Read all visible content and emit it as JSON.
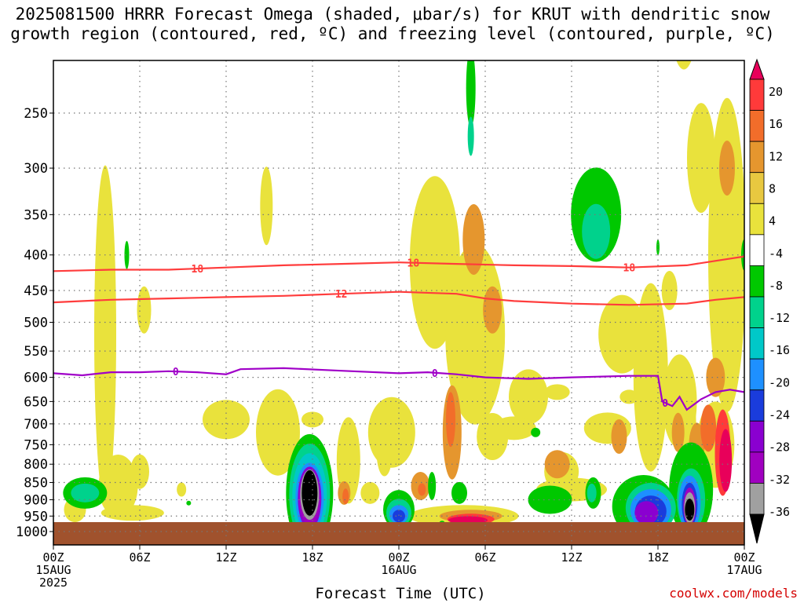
{
  "title_line1": "2025081500 HRRR Forecast Omega (shaded, μbar/s) for KRUT with dendritic snow",
  "title_line2": "growth region (contoured, red, ºC) and freezing level (contoured, purple, ºC)",
  "xaxis_title": "Forecast Time (UTC)",
  "credit": "coolwx.com/models",
  "chart_data": {
    "type": "heatmap",
    "title": "2025081500 HRRR Forecast Omega (shaded, μbar/s) for KRUT with dendritic snow growth region (contoured, red, ºC) and freezing level (contoured, purple, ºC)",
    "xlabel": "Forecast Time (UTC)",
    "ylabel": "",
    "x_ticks": [
      {
        "h": 0,
        "label": "00Z",
        "sub1": "15AUG",
        "sub2": "2025"
      },
      {
        "h": 6,
        "label": "06Z",
        "sub1": "",
        "sub2": ""
      },
      {
        "h": 12,
        "label": "12Z",
        "sub1": "",
        "sub2": ""
      },
      {
        "h": 18,
        "label": "18Z",
        "sub1": "",
        "sub2": ""
      },
      {
        "h": 24,
        "label": "00Z",
        "sub1": "16AUG",
        "sub2": ""
      },
      {
        "h": 30,
        "label": "06Z",
        "sub1": "",
        "sub2": ""
      },
      {
        "h": 36,
        "label": "12Z",
        "sub1": "",
        "sub2": ""
      },
      {
        "h": 42,
        "label": "18Z",
        "sub1": "",
        "sub2": ""
      },
      {
        "h": 48,
        "label": "00Z",
        "sub1": "17AUG",
        "sub2": ""
      }
    ],
    "xlim": [
      0,
      48
    ],
    "y_ticks": [
      250,
      300,
      350,
      400,
      450,
      500,
      550,
      600,
      650,
      700,
      750,
      800,
      850,
      900,
      950,
      1000
    ],
    "ylim": [
      1050,
      200
    ],
    "y_scale": "log-pressure",
    "grid": true,
    "colorbar": {
      "ticks": [
        "20",
        "16",
        "12",
        "8",
        "4",
        "-4",
        "-8",
        "-12",
        "-16",
        "-20",
        "-24",
        "-28",
        "-32",
        "-36"
      ],
      "colors": [
        "#e8005a",
        "#ff3a3a",
        "#f26d2a",
        "#e5962e",
        "#e8c840",
        "#e9e23c",
        "#ffffff",
        "#00c800",
        "#00d28c",
        "#00c8c8",
        "#1e90ff",
        "#1a3cdc",
        "#8a00d0",
        "#a000c0",
        "#a0a0a0",
        "#000000"
      ]
    },
    "contours": [
      {
        "name": "-18",
        "color": "#ff3c3c",
        "points": [
          [
            0,
            422
          ],
          [
            4,
            420
          ],
          [
            8,
            420
          ],
          [
            12,
            417
          ],
          [
            16,
            414
          ],
          [
            20,
            412
          ],
          [
            24,
            410
          ],
          [
            28,
            412
          ],
          [
            32,
            414
          ],
          [
            36,
            415
          ],
          [
            40,
            417
          ],
          [
            44,
            414
          ],
          [
            48,
            402
          ]
        ]
      },
      {
        "name": "-12",
        "color": "#ff3c3c",
        "points": [
          [
            0,
            468
          ],
          [
            4,
            464
          ],
          [
            8,
            462
          ],
          [
            12,
            460
          ],
          [
            16,
            458
          ],
          [
            20,
            455
          ],
          [
            24,
            452
          ],
          [
            28,
            455
          ],
          [
            30,
            462
          ],
          [
            32,
            466
          ],
          [
            36,
            470
          ],
          [
            40,
            472
          ],
          [
            44,
            470
          ],
          [
            46,
            464
          ],
          [
            48,
            460
          ]
        ]
      },
      {
        "name": "0",
        "color": "#a000c8",
        "points": [
          [
            0,
            592
          ],
          [
            2,
            596
          ],
          [
            4,
            590
          ],
          [
            6,
            590
          ],
          [
            8,
            588
          ],
          [
            10,
            590
          ],
          [
            12,
            594
          ],
          [
            13,
            584
          ],
          [
            16,
            582
          ],
          [
            20,
            587
          ],
          [
            24,
            592
          ],
          [
            26,
            590
          ],
          [
            28,
            594
          ],
          [
            30,
            600
          ],
          [
            33,
            603
          ],
          [
            36,
            600
          ],
          [
            40,
            597
          ],
          [
            42,
            597
          ],
          [
            42.3,
            650
          ],
          [
            43,
            660
          ],
          [
            43.5,
            640
          ],
          [
            44,
            668
          ],
          [
            45,
            645
          ],
          [
            46,
            630
          ],
          [
            47,
            625
          ],
          [
            48,
            630
          ]
        ]
      }
    ],
    "shaded_regions": [
      {
        "level": "4 to 8",
        "color": "#e9e23c"
      },
      {
        "level": "8 to 12",
        "color": "#e5962e"
      },
      {
        "level": "12 to 16",
        "color": "#f26d2a"
      },
      {
        "level": "16 to 20",
        "color": "#ff3a3a"
      },
      {
        "level": "-4 to -8",
        "color": "#00c800"
      },
      {
        "level": "-8 to -12",
        "color": "#00d28c"
      },
      {
        "level": "-12 to -16",
        "color": "#00c8c8"
      },
      {
        "level": "-16 to -20",
        "color": "#1e90ff"
      },
      {
        "level": "-20 to -24",
        "color": "#1a3cdc"
      },
      {
        "level": "-24 to -28",
        "color": "#8a00d0"
      },
      {
        "level": "-28 to -32",
        "color": "#a000c0"
      },
      {
        "level": "-32 to -36",
        "color": "#a0a0a0"
      },
      {
        "level": "< -36",
        "color": "#000000"
      }
    ],
    "ground_color": "#a0522d"
  }
}
